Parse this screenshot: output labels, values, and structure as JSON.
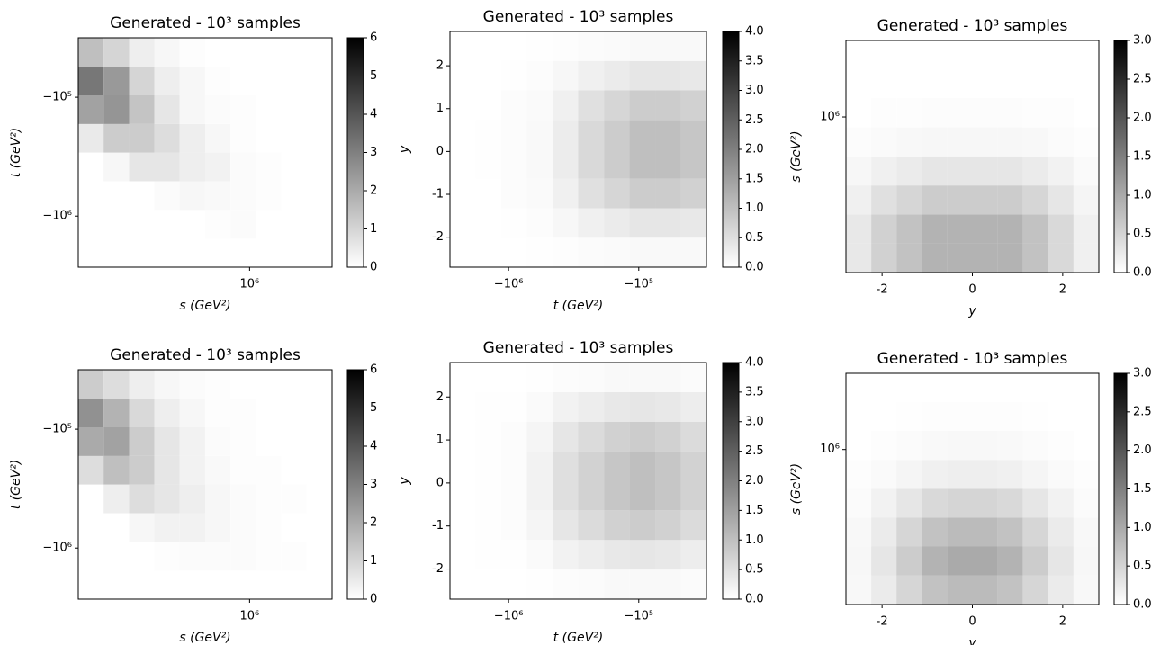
{
  "chart_data": [
    {
      "type": "heatmap",
      "title": "Generated - 10³ samples",
      "xlabel": "s (GeV²)",
      "ylabel": "t (GeV²)",
      "xscale": "log",
      "yscale": "log",
      "colormap": "gray_r",
      "xlim": [
        49000,
        4270000
      ],
      "ylim": [
        -2690000,
        -31600
      ],
      "xticks": [
        {
          "value": 1000000,
          "label": "10⁶"
        }
      ],
      "yticks": [
        {
          "value": -100000,
          "label": "−10⁵"
        },
        {
          "value": -1000000,
          "label": "−10⁶"
        }
      ],
      "xbins": [
        49000,
        76600,
        120000,
        187000,
        292000,
        457000,
        714000,
        1120000,
        1750000,
        2730000,
        4270000
      ],
      "ybins": [
        -2690000,
        -1550000,
        -887000,
        -509000,
        -292000,
        -168000,
        -96400,
        -55300,
        -31600
      ],
      "values": [
        [
          0,
          0,
          0,
          0,
          0,
          0,
          0,
          0,
          0,
          0
        ],
        [
          0,
          0,
          0,
          0,
          0,
          0.05,
          0.1,
          0,
          0,
          0
        ],
        [
          0,
          0,
          0,
          0.1,
          0.2,
          0.15,
          0.1,
          0.05,
          0,
          0
        ],
        [
          0,
          0.2,
          0.6,
          0.6,
          0.4,
          0.3,
          0.1,
          0.05,
          0,
          0
        ],
        [
          0.5,
          1.2,
          1.2,
          0.8,
          0.4,
          0.2,
          0.05,
          0,
          0,
          0
        ],
        [
          2.2,
          2.5,
          1.4,
          0.6,
          0.2,
          0.1,
          0.05,
          0,
          0,
          0
        ],
        [
          3.2,
          2.4,
          1.0,
          0.4,
          0.2,
          0.05,
          0,
          0,
          0,
          0
        ],
        [
          1.5,
          1.0,
          0.4,
          0.2,
          0.05,
          0,
          0,
          0,
          0,
          0
        ]
      ],
      "colorbar": {
        "lim": [
          0,
          6
        ],
        "ticks": [
          0,
          1,
          2,
          3,
          4,
          5,
          6
        ]
      }
    },
    {
      "type": "heatmap",
      "title": "Generated - 10³ samples",
      "xlabel": "t (GeV²)",
      "ylabel": "y",
      "xscale": "log",
      "yscale": "linear",
      "colormap": "gray_r",
      "xlim": [
        -2820000,
        -30200
      ],
      "ylim": [
        -2.7,
        2.8
      ],
      "xticks": [
        {
          "value": -1000000,
          "label": "−10⁶"
        },
        {
          "value": -100000,
          "label": "−10⁵"
        }
      ],
      "yticks": [
        -2,
        -1,
        0,
        1,
        2
      ],
      "xbins": [
        -2820000,
        -1790000,
        -1140000,
        -723000,
        -459000,
        -292000,
        -185000,
        -118000,
        -74800,
        -47500,
        -30200
      ],
      "ybins": [
        -2.7,
        -2.0125,
        -1.325,
        -0.6375,
        0.05,
        0.7375,
        1.425,
        2.1125,
        2.8
      ],
      "values": [
        [
          0,
          0,
          0,
          0.01,
          0.03,
          0.06,
          0.08,
          0.1,
          0.1,
          0.09
        ],
        [
          0,
          0,
          0.02,
          0.04,
          0.12,
          0.24,
          0.32,
          0.4,
          0.4,
          0.36
        ],
        [
          0,
          0,
          0.04,
          0.08,
          0.24,
          0.48,
          0.64,
          0.8,
          0.8,
          0.72
        ],
        [
          0,
          0.02,
          0.05,
          0.1,
          0.3,
          0.6,
          0.8,
          1.0,
          1.0,
          0.9
        ],
        [
          0,
          0.02,
          0.05,
          0.1,
          0.3,
          0.6,
          0.8,
          1.0,
          1.0,
          0.9
        ],
        [
          0,
          0,
          0.04,
          0.08,
          0.24,
          0.48,
          0.64,
          0.8,
          0.8,
          0.72
        ],
        [
          0,
          0,
          0.02,
          0.04,
          0.12,
          0.24,
          0.32,
          0.4,
          0.4,
          0.36
        ],
        [
          0,
          0,
          0,
          0.01,
          0.03,
          0.06,
          0.08,
          0.1,
          0.1,
          0.09
        ]
      ],
      "colorbar": {
        "lim": [
          0,
          4
        ],
        "ticks": [
          {
            "value": 0,
            "label": "0.0"
          },
          {
            "value": 0.5,
            "label": "0.5"
          },
          {
            "value": 1,
            "label": "1.0"
          },
          {
            "value": 1.5,
            "label": "1.5"
          },
          {
            "value": 2,
            "label": "2.0"
          },
          {
            "value": 2.5,
            "label": "2.5"
          },
          {
            "value": 3,
            "label": "3.0"
          },
          {
            "value": 3.5,
            "label": "3.5"
          },
          {
            "value": 4,
            "label": "4.0"
          }
        ]
      }
    },
    {
      "type": "heatmap",
      "title": "Generated - 10³ samples",
      "xlabel": "y",
      "ylabel": "s (GeV²)",
      "xscale": "linear",
      "yscale": "log",
      "colormap": "gray_r",
      "xlim": [
        -2.8,
        2.8
      ],
      "ylim": [
        107000,
        3000000
      ],
      "xticks": [
        -2,
        0,
        2
      ],
      "yticks": [
        {
          "value": 1000000,
          "label": "10⁶"
        }
      ],
      "xbins": [
        -2.8,
        -2.24,
        -1.68,
        -1.12,
        -0.56,
        0,
        0.56,
        1.12,
        1.68,
        2.24,
        2.8
      ],
      "ybins": [
        107000,
        163000,
        247000,
        374000,
        568000,
        861000,
        1310000,
        1980000,
        3000000
      ],
      "values": [
        [
          0.27,
          0.54,
          0.72,
          0.9,
          0.9,
          0.9,
          0.9,
          0.72,
          0.45,
          0.18
        ],
        [
          0.27,
          0.54,
          0.72,
          0.9,
          0.9,
          0.9,
          0.9,
          0.72,
          0.45,
          0.18
        ],
        [
          0.18,
          0.36,
          0.48,
          0.6,
          0.6,
          0.6,
          0.6,
          0.48,
          0.3,
          0.12
        ],
        [
          0.09,
          0.18,
          0.24,
          0.3,
          0.3,
          0.3,
          0.3,
          0.24,
          0.15,
          0.06
        ],
        [
          0.03,
          0.06,
          0.08,
          0.1,
          0.1,
          0.1,
          0.1,
          0.08,
          0.05,
          0.02
        ],
        [
          0,
          0.02,
          0.02,
          0.03,
          0.03,
          0.03,
          0.03,
          0.02,
          0.02,
          0
        ],
        [
          0,
          0,
          0,
          0,
          0,
          0,
          0,
          0,
          0,
          0
        ],
        [
          0,
          0,
          0,
          0,
          0,
          0,
          0,
          0,
          0,
          0
        ]
      ],
      "colorbar": {
        "lim": [
          0,
          3
        ],
        "ticks": [
          {
            "value": 0,
            "label": "0.0"
          },
          {
            "value": 0.5,
            "label": "0.5"
          },
          {
            "value": 1,
            "label": "1.0"
          },
          {
            "value": 1.5,
            "label": "1.5"
          },
          {
            "value": 2,
            "label": "2.0"
          },
          {
            "value": 2.5,
            "label": "2.5"
          },
          {
            "value": 3,
            "label": "3.0"
          }
        ]
      }
    },
    {
      "type": "heatmap",
      "title": "Generated - 10³ samples",
      "xlabel": "s (GeV²)",
      "ylabel": "t (GeV²)",
      "xscale": "log",
      "yscale": "log",
      "colormap": "gray_r",
      "xlim": [
        49000,
        4270000
      ],
      "ylim": [
        -2690000,
        -31600
      ],
      "xticks": [
        {
          "value": 1000000,
          "label": "10⁶"
        }
      ],
      "yticks": [
        {
          "value": -100000,
          "label": "−10⁵"
        },
        {
          "value": -1000000,
          "label": "−10⁶"
        }
      ],
      "xbins": [
        49000,
        76600,
        120000,
        187000,
        292000,
        457000,
        714000,
        1120000,
        1750000,
        2730000,
        4270000
      ],
      "ybins": [
        -2690000,
        -1550000,
        -887000,
        -509000,
        -292000,
        -168000,
        -96400,
        -55300,
        -31600
      ],
      "values": [
        [
          0,
          0,
          0,
          0,
          0,
          0,
          0,
          0,
          0,
          0
        ],
        [
          0,
          0,
          0,
          0.05,
          0.1,
          0.1,
          0.1,
          0.05,
          0.05,
          0
        ],
        [
          0,
          0,
          0.2,
          0.3,
          0.3,
          0.2,
          0.1,
          0.05,
          0,
          0
        ],
        [
          0,
          0.4,
          0.8,
          0.6,
          0.4,
          0.2,
          0.1,
          0.05,
          0.05,
          0
        ],
        [
          0.8,
          1.5,
          1.2,
          0.6,
          0.3,
          0.15,
          0.05,
          0.05,
          0,
          0
        ],
        [
          2.0,
          2.2,
          1.2,
          0.6,
          0.3,
          0.1,
          0.05,
          0,
          0,
          0
        ],
        [
          2.6,
          1.8,
          0.9,
          0.4,
          0.2,
          0.05,
          0.05,
          0,
          0,
          0
        ],
        [
          1.2,
          0.8,
          0.4,
          0.2,
          0.1,
          0.05,
          0,
          0,
          0,
          0
        ]
      ],
      "colorbar": {
        "lim": [
          0,
          6
        ],
        "ticks": [
          0,
          1,
          2,
          3,
          4,
          5,
          6
        ]
      }
    },
    {
      "type": "heatmap",
      "title": "Generated - 10³ samples",
      "xlabel": "t (GeV²)",
      "ylabel": "y",
      "xscale": "log",
      "yscale": "linear",
      "colormap": "gray_r",
      "xlim": [
        -2820000,
        -30200
      ],
      "ylim": [
        -2.7,
        2.8
      ],
      "xticks": [
        {
          "value": -1000000,
          "label": "−10⁶"
        },
        {
          "value": -100000,
          "label": "−10⁵"
        }
      ],
      "yticks": [
        -2,
        -1,
        0,
        1,
        2
      ],
      "xbins": [
        -2820000,
        -1790000,
        -1140000,
        -723000,
        -459000,
        -292000,
        -185000,
        -118000,
        -74800,
        -47500,
        -30200
      ],
      "ybins": [
        -2.7,
        -2.0125,
        -1.325,
        -0.6375,
        0.05,
        0.7375,
        1.425,
        2.1125,
        2.8
      ],
      "values": [
        [
          0,
          0,
          0,
          0.02,
          0.05,
          0.07,
          0.09,
          0.1,
          0.09,
          0.07
        ],
        [
          0,
          0.01,
          0.02,
          0.08,
          0.2,
          0.28,
          0.36,
          0.4,
          0.36,
          0.28
        ],
        [
          0,
          0.02,
          0.04,
          0.16,
          0.4,
          0.56,
          0.72,
          0.8,
          0.72,
          0.56
        ],
        [
          0,
          0.02,
          0.05,
          0.2,
          0.5,
          0.7,
          0.9,
          1.0,
          0.9,
          0.7
        ],
        [
          0,
          0.02,
          0.05,
          0.2,
          0.5,
          0.7,
          0.9,
          1.0,
          0.9,
          0.7
        ],
        [
          0,
          0.02,
          0.04,
          0.16,
          0.4,
          0.56,
          0.72,
          0.8,
          0.72,
          0.56
        ],
        [
          0,
          0.01,
          0.02,
          0.08,
          0.2,
          0.28,
          0.36,
          0.4,
          0.36,
          0.28
        ],
        [
          0,
          0,
          0,
          0.02,
          0.05,
          0.07,
          0.09,
          0.1,
          0.09,
          0.07
        ]
      ],
      "colorbar": {
        "lim": [
          0,
          4
        ],
        "ticks": [
          {
            "value": 0,
            "label": "0.0"
          },
          {
            "value": 0.5,
            "label": "0.5"
          },
          {
            "value": 1,
            "label": "1.0"
          },
          {
            "value": 1.5,
            "label": "1.5"
          },
          {
            "value": 2,
            "label": "2.0"
          },
          {
            "value": 2.5,
            "label": "2.5"
          },
          {
            "value": 3,
            "label": "3.0"
          },
          {
            "value": 3.5,
            "label": "3.5"
          },
          {
            "value": 4,
            "label": "4.0"
          }
        ]
      }
    },
    {
      "type": "heatmap",
      "title": "Generated - 10³ samples",
      "xlabel": "y",
      "ylabel": "s (GeV²)",
      "xscale": "linear",
      "yscale": "log",
      "colormap": "gray_r",
      "xlim": [
        -2.8,
        2.8
      ],
      "ylim": [
        107000,
        3000000
      ],
      "xticks": [
        -2,
        0,
        2
      ],
      "yticks": [
        {
          "value": 1000000,
          "label": "10⁶"
        }
      ],
      "xbins": [
        -2.8,
        -2.24,
        -1.68,
        -1.12,
        -0.56,
        0,
        0.56,
        1.12,
        1.68,
        2.24,
        2.8
      ],
      "ybins": [
        107000,
        163000,
        247000,
        374000,
        568000,
        861000,
        1310000,
        1980000,
        3000000
      ],
      "values": [
        [
          0.08,
          0.24,
          0.48,
          0.72,
          0.8,
          0.8,
          0.72,
          0.48,
          0.24,
          0.08
        ],
        [
          0.1,
          0.3,
          0.6,
          0.9,
          1.0,
          1.0,
          0.9,
          0.6,
          0.3,
          0.1
        ],
        [
          0.08,
          0.24,
          0.48,
          0.72,
          0.8,
          0.8,
          0.72,
          0.48,
          0.24,
          0.08
        ],
        [
          0.05,
          0.15,
          0.3,
          0.45,
          0.5,
          0.5,
          0.45,
          0.3,
          0.15,
          0.05
        ],
        [
          0.02,
          0.06,
          0.12,
          0.18,
          0.2,
          0.2,
          0.18,
          0.12,
          0.06,
          0.02
        ],
        [
          0,
          0.02,
          0.05,
          0.07,
          0.08,
          0.08,
          0.07,
          0.05,
          0.02,
          0
        ],
        [
          0,
          0,
          0.01,
          0.02,
          0.02,
          0.02,
          0.02,
          0.01,
          0,
          0
        ],
        [
          0,
          0,
          0,
          0,
          0,
          0,
          0,
          0,
          0,
          0
        ]
      ],
      "colorbar": {
        "lim": [
          0,
          3
        ],
        "ticks": [
          {
            "value": 0,
            "label": "0.0"
          },
          {
            "value": 0.5,
            "label": "0.5"
          },
          {
            "value": 1,
            "label": "1.0"
          },
          {
            "value": 1.5,
            "label": "1.5"
          },
          {
            "value": 2,
            "label": "2.0"
          },
          {
            "value": 2.5,
            "label": "2.5"
          },
          {
            "value": 3,
            "label": "3.0"
          }
        ]
      }
    }
  ]
}
